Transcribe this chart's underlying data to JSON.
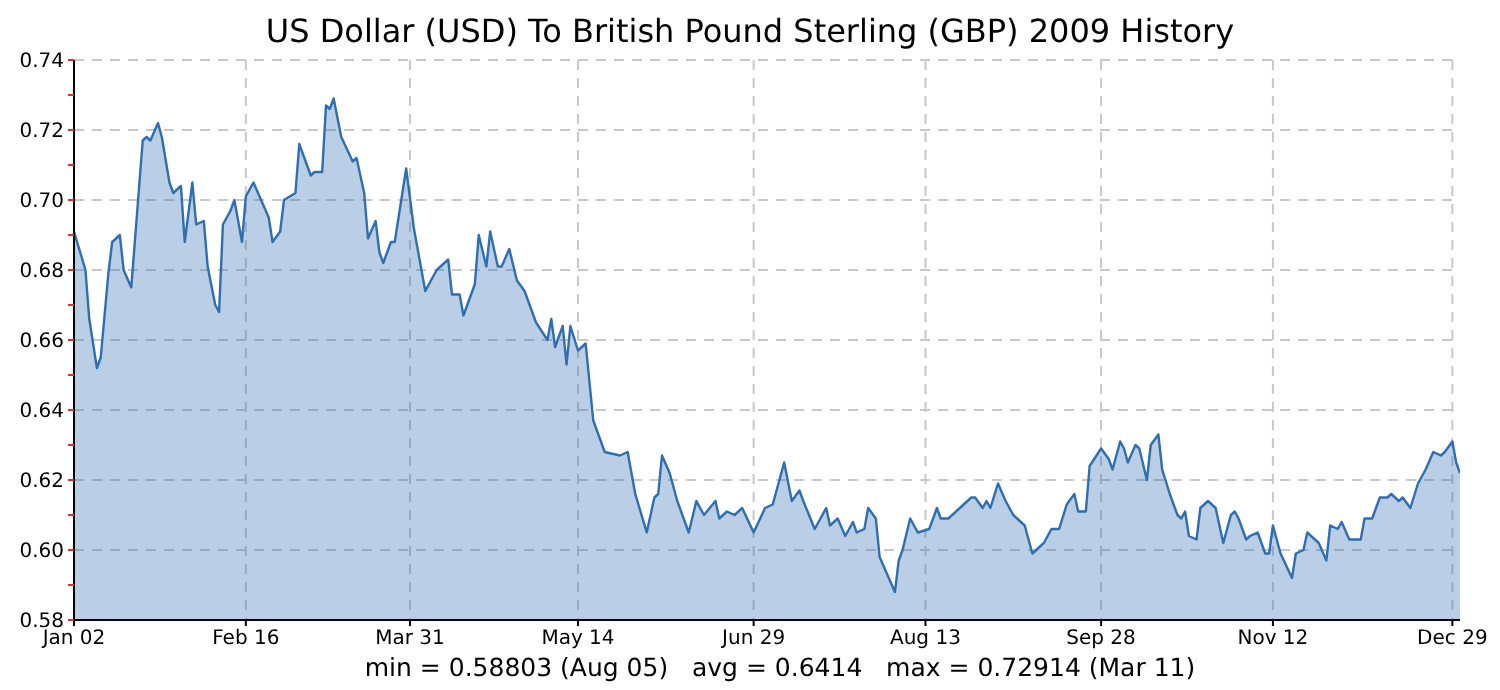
{
  "chart_data": {
    "type": "area",
    "title": "US Dollar (USD) To British Pound Sterling (GBP) 2009 History",
    "annotations": [
      "min = 0.58803 (Aug 05)   avg = 0.6414   max = 0.72914 (Mar 11)"
    ],
    "series": [
      {
        "color": "#2f6eb0",
        "x": [
          "2009-01-02",
          "2009-01-05",
          "2009-01-06",
          "2009-01-08",
          "2009-01-09",
          "2009-01-11",
          "2009-01-12",
          "2009-01-14",
          "2009-01-15",
          "2009-01-17",
          "2009-01-18",
          "2009-01-20",
          "2009-01-21",
          "2009-01-22",
          "2009-01-24",
          "2009-01-25",
          "2009-01-27",
          "2009-01-28",
          "2009-01-30",
          "2009-01-31",
          "2009-02-02",
          "2009-02-03",
          "2009-02-05",
          "2009-02-06",
          "2009-02-08",
          "2009-02-09",
          "2009-02-10",
          "2009-02-12",
          "2009-02-13",
          "2009-02-15",
          "2009-02-16",
          "2009-02-18",
          "2009-02-20",
          "2009-02-22",
          "2009-02-23",
          "2009-02-25",
          "2009-02-26",
          "2009-03-01",
          "2009-03-02",
          "2009-03-05",
          "2009-03-06",
          "2009-03-08",
          "2009-03-09",
          "2009-03-10",
          "2009-03-11",
          "2009-03-13",
          "2009-03-16",
          "2009-03-17",
          "2009-03-19",
          "2009-03-20",
          "2009-03-22",
          "2009-03-23",
          "2009-03-24",
          "2009-03-26",
          "2009-03-27",
          "2009-03-30",
          "2009-04-01",
          "2009-04-04",
          "2009-04-07",
          "2009-04-10",
          "2009-04-11",
          "2009-04-13",
          "2009-04-14",
          "2009-04-17",
          "2009-04-18",
          "2009-04-20",
          "2009-04-21",
          "2009-04-23",
          "2009-04-24",
          "2009-04-26",
          "2009-04-28",
          "2009-04-30",
          "2009-05-03",
          "2009-05-06",
          "2009-05-07",
          "2009-05-08",
          "2009-05-10",
          "2009-05-11",
          "2009-05-12",
          "2009-05-14",
          "2009-05-16",
          "2009-05-18",
          "2009-05-21",
          "2009-05-25",
          "2009-05-27",
          "2009-05-29",
          "2009-06-01",
          "2009-06-03",
          "2009-06-04",
          "2009-06-05",
          "2009-06-07",
          "2009-06-09",
          "2009-06-12",
          "2009-06-14",
          "2009-06-16",
          "2009-06-19",
          "2009-06-20",
          "2009-06-22",
          "2009-06-24",
          "2009-06-26",
          "2009-06-29",
          "2009-07-02",
          "2009-07-04",
          "2009-07-07",
          "2009-07-09",
          "2009-07-11",
          "2009-07-12",
          "2009-07-15",
          "2009-07-18",
          "2009-07-19",
          "2009-07-21",
          "2009-07-23",
          "2009-07-25",
          "2009-07-26",
          "2009-07-28",
          "2009-07-29",
          "2009-07-31",
          "2009-08-01",
          "2009-08-05",
          "2009-08-06",
          "2009-08-07",
          "2009-08-09",
          "2009-08-11",
          "2009-08-14",
          "2009-08-16",
          "2009-08-17",
          "2009-08-19",
          "2009-08-22",
          "2009-08-25",
          "2009-08-26",
          "2009-08-28",
          "2009-08-29",
          "2009-08-30",
          "2009-09-01",
          "2009-09-03",
          "2009-09-05",
          "2009-09-08",
          "2009-09-10",
          "2009-09-12",
          "2009-09-13",
          "2009-09-15",
          "2009-09-17",
          "2009-09-19",
          "2009-09-21",
          "2009-09-22",
          "2009-09-24",
          "2009-09-25",
          "2009-09-28",
          "2009-09-30",
          "2009-10-01",
          "2009-10-03",
          "2009-10-04",
          "2009-10-05",
          "2009-10-07",
          "2009-10-08",
          "2009-10-10",
          "2009-10-11",
          "2009-10-13",
          "2009-10-14",
          "2009-10-16",
          "2009-10-18",
          "2009-10-19",
          "2009-10-20",
          "2009-10-21",
          "2009-10-23",
          "2009-10-24",
          "2009-10-26",
          "2009-10-28",
          "2009-10-30",
          "2009-11-01",
          "2009-11-02",
          "2009-11-03",
          "2009-11-05",
          "2009-11-06",
          "2009-11-08",
          "2009-11-10",
          "2009-11-11",
          "2009-11-12",
          "2009-11-14",
          "2009-11-17",
          "2009-11-18",
          "2009-11-20",
          "2009-11-21",
          "2009-11-24",
          "2009-11-26",
          "2009-11-27",
          "2009-11-29",
          "2009-11-30",
          "2009-12-02",
          "2009-12-05",
          "2009-12-06",
          "2009-12-08",
          "2009-12-10",
          "2009-12-12",
          "2009-12-13",
          "2009-12-15",
          "2009-12-16",
          "2009-12-18",
          "2009-12-20",
          "2009-12-22",
          "2009-12-24",
          "2009-12-26",
          "2009-12-27",
          "2009-12-29",
          "2009-12-30",
          "2009-12-31"
        ],
        "values": [
          0.691,
          0.68,
          0.666,
          0.652,
          0.655,
          0.679,
          0.688,
          0.69,
          0.68,
          0.675,
          0.689,
          0.717,
          0.718,
          0.717,
          0.722,
          0.718,
          0.705,
          0.702,
          0.704,
          0.688,
          0.705,
          0.693,
          0.694,
          0.681,
          0.67,
          0.668,
          0.693,
          0.697,
          0.7,
          0.688,
          0.701,
          0.705,
          0.7,
          0.695,
          0.688,
          0.691,
          0.7,
          0.702,
          0.716,
          0.707,
          0.708,
          0.708,
          0.727,
          0.726,
          0.729,
          0.718,
          0.711,
          0.712,
          0.702,
          0.689,
          0.694,
          0.685,
          0.682,
          0.688,
          0.688,
          0.709,
          0.692,
          0.674,
          0.68,
          0.683,
          0.673,
          0.673,
          0.667,
          0.676,
          0.69,
          0.681,
          0.691,
          0.681,
          0.681,
          0.686,
          0.677,
          0.674,
          0.665,
          0.66,
          0.666,
          0.658,
          0.664,
          0.653,
          0.664,
          0.657,
          0.659,
          0.637,
          0.628,
          0.627,
          0.628,
          0.616,
          0.605,
          0.615,
          0.616,
          0.627,
          0.622,
          0.614,
          0.605,
          0.614,
          0.61,
          0.614,
          0.609,
          0.611,
          0.61,
          0.612,
          0.605,
          0.612,
          0.613,
          0.625,
          0.614,
          0.617,
          0.614,
          0.606,
          0.612,
          0.607,
          0.609,
          0.604,
          0.608,
          0.605,
          0.606,
          0.612,
          0.609,
          0.598,
          0.588,
          0.597,
          0.6,
          0.609,
          0.605,
          0.606,
          0.612,
          0.609,
          0.609,
          0.612,
          0.615,
          0.615,
          0.612,
          0.614,
          0.612,
          0.619,
          0.614,
          0.61,
          0.607,
          0.599,
          0.601,
          0.602,
          0.606,
          0.606,
          0.613,
          0.616,
          0.611,
          0.611,
          0.624,
          0.629,
          0.626,
          0.623,
          0.631,
          0.629,
          0.625,
          0.63,
          0.629,
          0.62,
          0.63,
          0.633,
          0.623,
          0.616,
          0.61,
          0.609,
          0.611,
          0.604,
          0.603,
          0.612,
          0.614,
          0.612,
          0.602,
          0.61,
          0.611,
          0.609,
          0.603,
          0.604,
          0.605,
          0.599,
          0.599,
          0.607,
          0.599,
          0.592,
          0.599,
          0.6,
          0.605,
          0.602,
          0.597,
          0.607,
          0.606,
          0.608,
          0.603,
          0.603,
          0.609,
          0.609,
          0.615,
          0.615,
          0.616,
          0.614,
          0.615,
          0.612,
          0.619,
          0.623,
          0.628,
          0.627,
          0.628,
          0.631,
          0.625,
          0.622
        ]
      }
    ],
    "xlim": [
      "2009-01-02",
      "2009-12-31"
    ],
    "xticks": [
      {
        "value": "2009-01-02",
        "label": "Jan 02"
      },
      {
        "value": "2009-02-16",
        "label": "Feb 16"
      },
      {
        "value": "2009-03-31",
        "label": "Mar 31"
      },
      {
        "value": "2009-05-14",
        "label": "May 14"
      },
      {
        "value": "2009-06-29",
        "label": "Jun 29"
      },
      {
        "value": "2009-08-13",
        "label": "Aug 13"
      },
      {
        "value": "2009-09-28",
        "label": "Sep 28"
      },
      {
        "value": "2009-11-12",
        "label": "Nov 12"
      },
      {
        "value": "2009-12-29",
        "label": "Dec 29"
      }
    ],
    "ylim": [
      0.58,
      0.74
    ],
    "yticks": [
      {
        "value": 0.58,
        "label": "0.58"
      },
      {
        "value": 0.59,
        "label": null
      },
      {
        "value": 0.6,
        "label": "0.60"
      },
      {
        "value": 0.61,
        "label": null
      },
      {
        "value": 0.62,
        "label": "0.62"
      },
      {
        "value": 0.63,
        "label": null
      },
      {
        "value": 0.64,
        "label": "0.64"
      },
      {
        "value": 0.65,
        "label": null
      },
      {
        "value": 0.66,
        "label": "0.66"
      },
      {
        "value": 0.67,
        "label": null
      },
      {
        "value": 0.68,
        "label": "0.68"
      },
      {
        "value": 0.69,
        "label": null
      },
      {
        "value": 0.7,
        "label": "0.70"
      },
      {
        "value": 0.71,
        "label": null
      },
      {
        "value": 0.72,
        "label": "0.72"
      },
      {
        "value": 0.73,
        "label": null
      },
      {
        "value": 0.74,
        "label": "0.74"
      }
    ],
    "grid": true
  }
}
